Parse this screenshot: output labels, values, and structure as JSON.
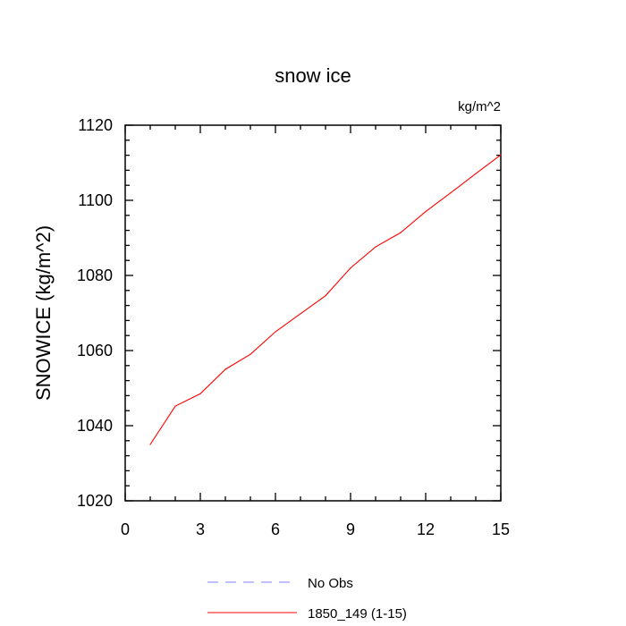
{
  "chart_data": {
    "type": "line",
    "title": "snow ice",
    "units": "kg/m^2",
    "ylabel": "SNOWICE  (kg/m^2)",
    "xlabel": "",
    "xlim": [
      0,
      15
    ],
    "ylim": [
      1020,
      1120
    ],
    "x_ticks": [
      "0",
      "3",
      "6",
      "9",
      "12",
      "15"
    ],
    "y_ticks": [
      "1020",
      "1040",
      "1060",
      "1080",
      "1100",
      "1120"
    ],
    "x": [
      1,
      2,
      3,
      4,
      5,
      6,
      7,
      8,
      9,
      10,
      11,
      12,
      13,
      14,
      15
    ],
    "series": [
      {
        "name": "1850_149 (1-15)",
        "color": "#ff0000",
        "values": [
          1035.0,
          1045.2,
          1048.5,
          1055.0,
          1059.0,
          1065.0,
          1069.8,
          1074.6,
          1082.0,
          1087.6,
          1091.4,
          1097.0,
          1102.0,
          1107.1,
          1112.1
        ]
      }
    ],
    "legend": [
      {
        "label": "No Obs",
        "color": "#8080ff",
        "style": "dashed"
      },
      {
        "label": "1850_149 (1-15)",
        "color": "#ff0000",
        "style": "solid"
      }
    ],
    "legend_position": "bottom-center",
    "grid": false
  }
}
